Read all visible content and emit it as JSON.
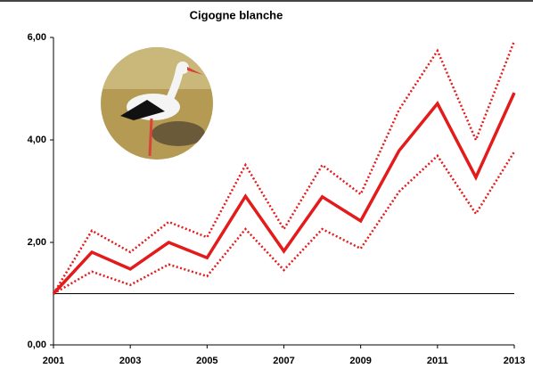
{
  "chart_data": {
    "type": "line",
    "title": "Cigogne blanche",
    "x": [
      2001,
      2002,
      2003,
      2004,
      2005,
      2006,
      2007,
      2008,
      2009,
      2010,
      2011,
      2012,
      2013
    ],
    "series": [
      {
        "color": "#e31b1b",
        "style": "solid",
        "values": [
          1.0,
          1.81,
          1.48,
          2.0,
          1.7,
          2.9,
          1.83,
          2.89,
          2.42,
          3.79,
          4.71,
          3.27,
          4.92
        ]
      },
      {
        "color": "#e31b1b",
        "style": "dotted",
        "values": [
          1.0,
          2.23,
          1.81,
          2.4,
          2.1,
          3.51,
          2.26,
          3.51,
          2.94,
          4.59,
          5.74,
          4.0,
          5.93
        ]
      },
      {
        "color": "#e31b1b",
        "style": "dotted",
        "values": [
          1.0,
          1.43,
          1.17,
          1.57,
          1.34,
          2.26,
          1.46,
          2.26,
          1.88,
          2.99,
          3.69,
          2.56,
          3.77
        ]
      }
    ],
    "hline": 1,
    "xlim": [
      2001,
      2013
    ],
    "xticks": [
      2001,
      2003,
      2005,
      2007,
      2009,
      2011,
      2013
    ],
    "ylim": [
      0,
      6
    ],
    "yticks": [
      {
        "value": 0,
        "label": "0,00"
      },
      {
        "value": 2,
        "label": "2,00"
      },
      {
        "value": 4,
        "label": "4,00"
      },
      {
        "value": 6,
        "label": "6,00"
      }
    ]
  }
}
